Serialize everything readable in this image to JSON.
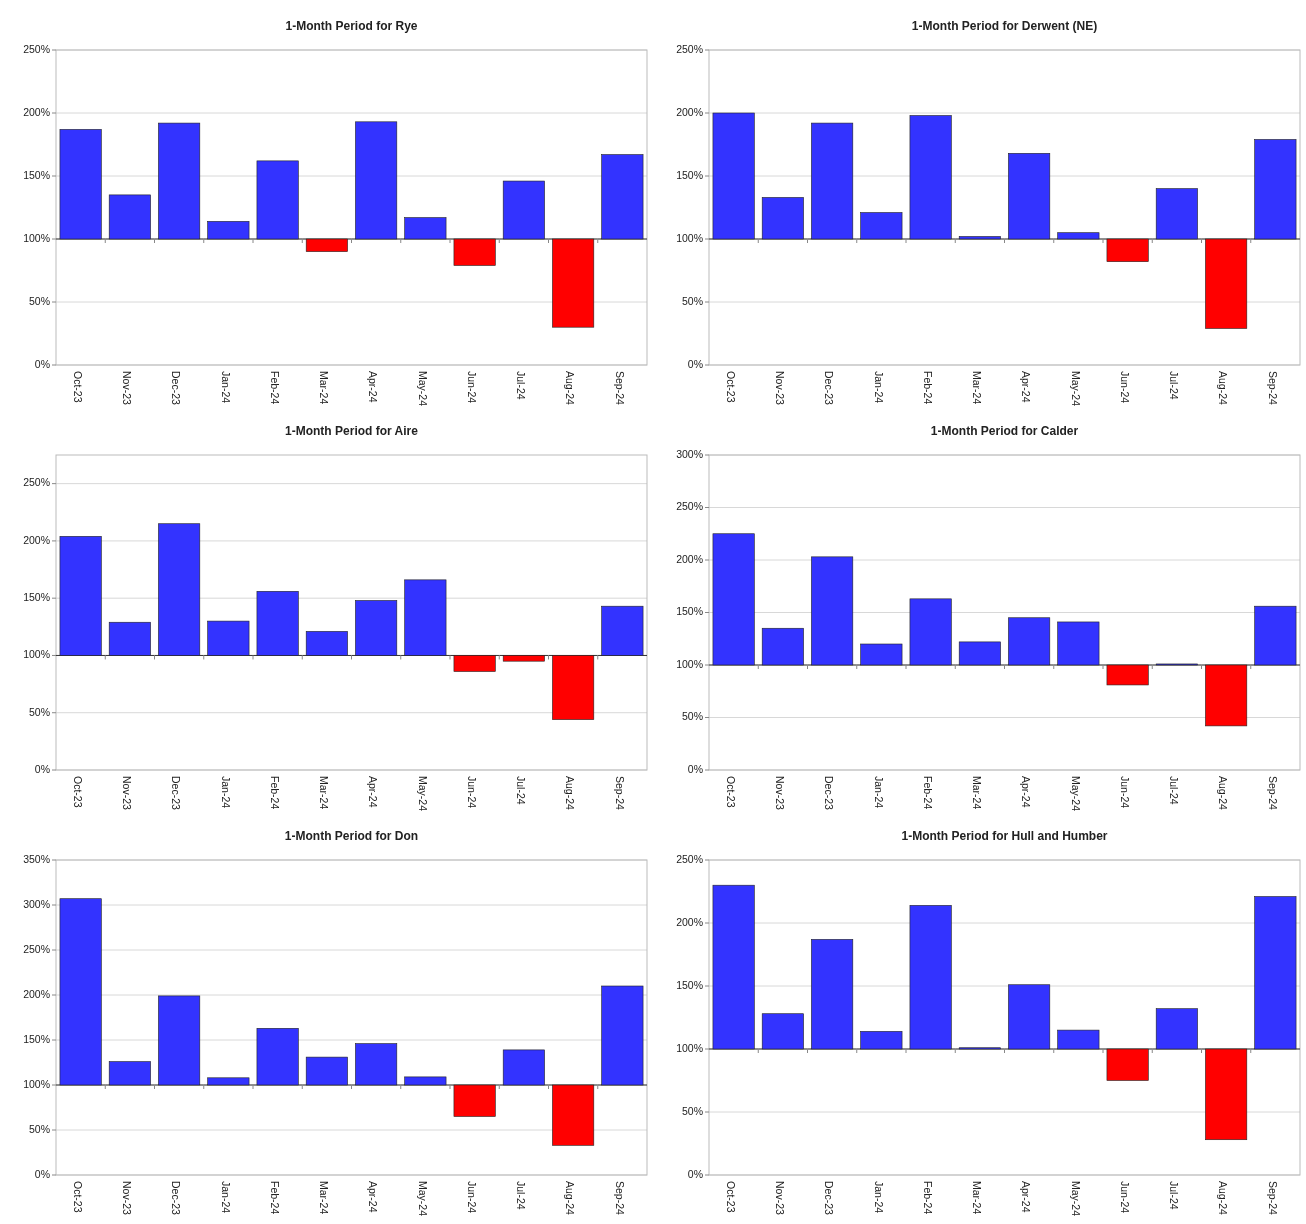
{
  "chart_data": [
    {
      "type": "bar",
      "title": "1-Month Period for Rye",
      "categories": [
        "Oct-23",
        "Nov-23",
        "Dec-23",
        "Jan-24",
        "Feb-24",
        "Mar-24",
        "Apr-24",
        "May-24",
        "Jun-24",
        "Jul-24",
        "Aug-24",
        "Sep-24"
      ],
      "base": [
        100,
        100,
        100,
        100,
        100,
        100,
        100,
        100,
        100,
        100,
        100,
        100
      ],
      "values": [
        87,
        35,
        92,
        14,
        62,
        -10,
        93,
        17,
        -21,
        46,
        -70,
        67
      ],
      "colors": [
        "#3333ff",
        "#3333ff",
        "#3333ff",
        "#3333ff",
        "#3333ff",
        "#ff0000",
        "#3333ff",
        "#3333ff",
        "#ff0000",
        "#3333ff",
        "#ff0000",
        "#3333ff"
      ],
      "ylim": [
        0,
        250
      ],
      "yticks": [
        {
          "value": 0,
          "label": "0%"
        },
        {
          "value": 50,
          "label": "50%"
        },
        {
          "value": 100,
          "label": "100%"
        },
        {
          "value": 150,
          "label": "150%"
        },
        {
          "value": 200,
          "label": "200%"
        },
        {
          "value": 250,
          "label": "250%"
        }
      ],
      "grid": "y"
    },
    {
      "type": "bar",
      "title": "1-Month Period for Derwent (NE)",
      "categories": [
        "Oct-23",
        "Nov-23",
        "Dec-23",
        "Jan-24",
        "Feb-24",
        "Mar-24",
        "Apr-24",
        "May-24",
        "Jun-24",
        "Jul-24",
        "Aug-24",
        "Sep-24"
      ],
      "base": [
        100,
        100,
        100,
        100,
        100,
        100,
        100,
        100,
        100,
        100,
        100,
        100
      ],
      "values": [
        100,
        33,
        92,
        21,
        98,
        2,
        68,
        5,
        -18,
        40,
        -71,
        79
      ],
      "colors": [
        "#3333ff",
        "#3333ff",
        "#3333ff",
        "#3333ff",
        "#3333ff",
        "#3333ff",
        "#3333ff",
        "#3333ff",
        "#ff0000",
        "#3333ff",
        "#ff0000",
        "#3333ff"
      ],
      "ylim": [
        0,
        250
      ],
      "yticks": [
        {
          "value": 0,
          "label": "0%"
        },
        {
          "value": 50,
          "label": "50%"
        },
        {
          "value": 100,
          "label": "100%"
        },
        {
          "value": 150,
          "label": "150%"
        },
        {
          "value": 200,
          "label": "200%"
        },
        {
          "value": 250,
          "label": "250%"
        }
      ],
      "grid": "y"
    },
    {
      "type": "bar",
      "title": "1-Month Period for Aire",
      "categories": [
        "Oct-23",
        "Nov-23",
        "Dec-23",
        "Jan-24",
        "Feb-24",
        "Mar-24",
        "Apr-24",
        "May-24",
        "Jun-24",
        "Jul-24",
        "Aug-24",
        "Sep-24"
      ],
      "base": [
        100,
        100,
        100,
        100,
        100,
        100,
        100,
        100,
        100,
        100,
        100,
        100
      ],
      "values": [
        104,
        29,
        115,
        30,
        56,
        21,
        48,
        66,
        -14,
        -5,
        -56,
        43
      ],
      "colors": [
        "#3333ff",
        "#3333ff",
        "#3333ff",
        "#3333ff",
        "#3333ff",
        "#3333ff",
        "#3333ff",
        "#3333ff",
        "#ff0000",
        "#ff0000",
        "#ff0000",
        "#3333ff"
      ],
      "ylim": [
        0,
        275
      ],
      "yticks": [
        {
          "value": 0,
          "label": "0%"
        },
        {
          "value": 50,
          "label": "50%"
        },
        {
          "value": 100,
          "label": "100%"
        },
        {
          "value": 150,
          "label": "150%"
        },
        {
          "value": 200,
          "label": "200%"
        },
        {
          "value": 250,
          "label": "250%"
        }
      ],
      "grid": "y"
    },
    {
      "type": "bar",
      "title": "1-Month Period for Calder",
      "categories": [
        "Oct-23",
        "Nov-23",
        "Dec-23",
        "Jan-24",
        "Feb-24",
        "Mar-24",
        "Apr-24",
        "May-24",
        "Jun-24",
        "Jul-24",
        "Aug-24",
        "Sep-24"
      ],
      "base": [
        100,
        100,
        100,
        100,
        100,
        100,
        100,
        100,
        100,
        100,
        100,
        100
      ],
      "values": [
        125,
        35,
        103,
        20,
        63,
        22,
        45,
        41,
        -19,
        1,
        -58,
        56
      ],
      "colors": [
        "#3333ff",
        "#3333ff",
        "#3333ff",
        "#3333ff",
        "#3333ff",
        "#3333ff",
        "#3333ff",
        "#3333ff",
        "#ff0000",
        "#3333ff",
        "#ff0000",
        "#3333ff"
      ],
      "ylim": [
        0,
        300
      ],
      "yticks": [
        {
          "value": 0,
          "label": "0%"
        },
        {
          "value": 50,
          "label": "50%"
        },
        {
          "value": 100,
          "label": "100%"
        },
        {
          "value": 150,
          "label": "150%"
        },
        {
          "value": 200,
          "label": "200%"
        },
        {
          "value": 250,
          "label": "250%"
        },
        {
          "value": 300,
          "label": "300%"
        }
      ],
      "grid": "y"
    },
    {
      "type": "bar",
      "title": "1-Month Period for Don",
      "categories": [
        "Oct-23",
        "Nov-23",
        "Dec-23",
        "Jan-24",
        "Feb-24",
        "Mar-24",
        "Apr-24",
        "May-24",
        "Jun-24",
        "Jul-24",
        "Aug-24",
        "Sep-24"
      ],
      "base": [
        100,
        100,
        100,
        100,
        100,
        100,
        100,
        100,
        100,
        100,
        100,
        100
      ],
      "values": [
        207,
        26,
        99,
        8,
        63,
        31,
        46,
        9,
        -35,
        39,
        -67,
        110
      ],
      "colors": [
        "#3333ff",
        "#3333ff",
        "#3333ff",
        "#3333ff",
        "#3333ff",
        "#3333ff",
        "#3333ff",
        "#3333ff",
        "#ff0000",
        "#3333ff",
        "#ff0000",
        "#3333ff"
      ],
      "ylim": [
        0,
        350
      ],
      "yticks": [
        {
          "value": 0,
          "label": "0%"
        },
        {
          "value": 50,
          "label": "50%"
        },
        {
          "value": 100,
          "label": "100%"
        },
        {
          "value": 150,
          "label": "150%"
        },
        {
          "value": 200,
          "label": "200%"
        },
        {
          "value": 250,
          "label": "250%"
        },
        {
          "value": 300,
          "label": "300%"
        },
        {
          "value": 350,
          "label": "350%"
        }
      ],
      "grid": "y"
    },
    {
      "type": "bar",
      "title": "1-Month Period for Hull and Humber",
      "categories": [
        "Oct-23",
        "Nov-23",
        "Dec-23",
        "Jan-24",
        "Feb-24",
        "Mar-24",
        "Apr-24",
        "May-24",
        "Jun-24",
        "Jul-24",
        "Aug-24",
        "Sep-24"
      ],
      "base": [
        100,
        100,
        100,
        100,
        100,
        100,
        100,
        100,
        100,
        100,
        100,
        100
      ],
      "values": [
        130,
        28,
        87,
        14,
        114,
        1,
        51,
        15,
        -25,
        32,
        -72,
        121
      ],
      "colors": [
        "#3333ff",
        "#3333ff",
        "#3333ff",
        "#3333ff",
        "#3333ff",
        "#3333ff",
        "#3333ff",
        "#3333ff",
        "#ff0000",
        "#3333ff",
        "#ff0000",
        "#3333ff"
      ],
      "ylim": [
        0,
        250
      ],
      "yticks": [
        {
          "value": 0,
          "label": "0%"
        },
        {
          "value": 50,
          "label": "50%"
        },
        {
          "value": 100,
          "label": "100%"
        },
        {
          "value": 150,
          "label": "150%"
        },
        {
          "value": 200,
          "label": "200%"
        },
        {
          "value": 250,
          "label": "250%"
        }
      ],
      "grid": "y"
    }
  ]
}
